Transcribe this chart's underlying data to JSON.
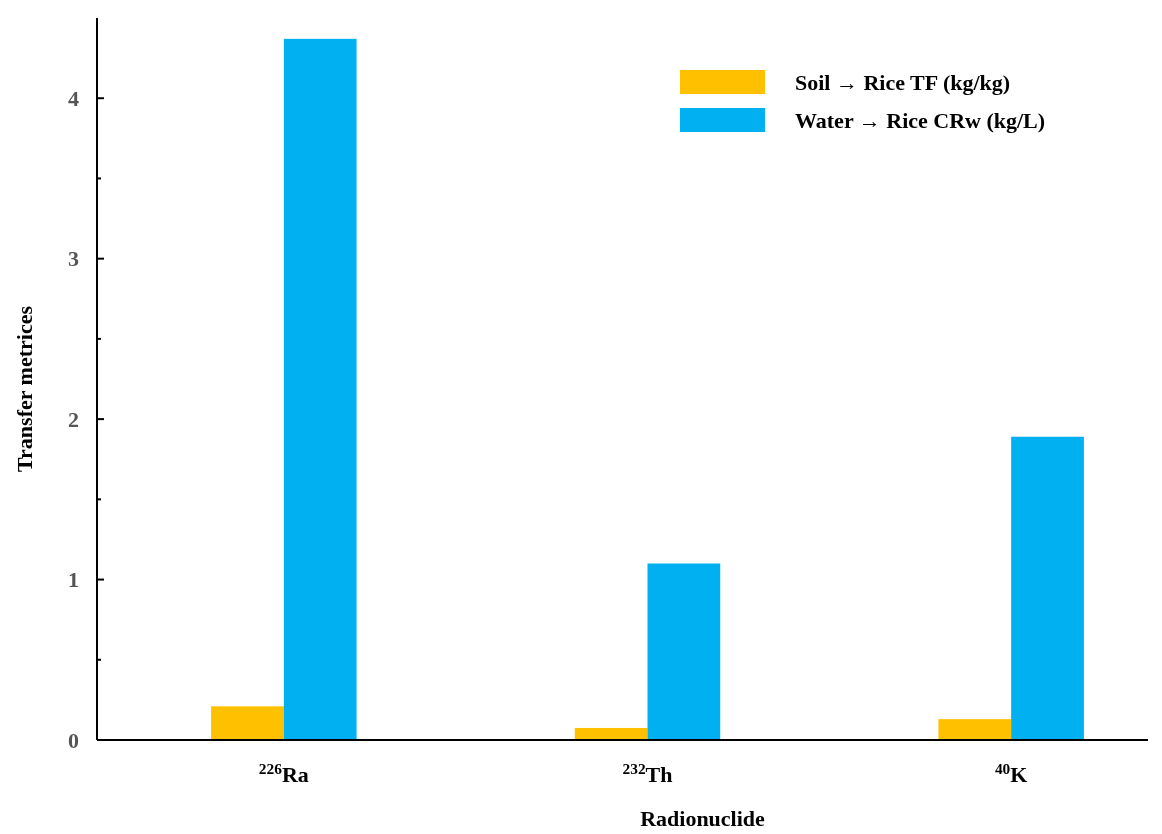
{
  "chart_data": {
    "type": "bar",
    "xlabel": "Radionuclide",
    "ylabel": "Transfer metrices",
    "categories": [
      "$^{226}$Ra",
      "$^{232}$Th",
      "$^{40}$K"
    ],
    "series": [
      {
        "name": "Soil → Rice TF (kg/kg)",
        "color": "#ffc000",
        "values": [
          0.21,
          0.075,
          0.13
        ]
      },
      {
        "name": "Water → Rice CRw (kg/L)",
        "color": "#00b0f0",
        "values": [
          4.37,
          1.1,
          1.89
        ]
      }
    ],
    "ylim": [
      0,
      4.5
    ],
    "yticks": [
      0,
      {
        "value": 0.5,
        "label": null
      },
      1,
      {
        "value": 1.5,
        "label": null
      },
      2,
      {
        "value": 2.5,
        "label": null
      },
      3,
      {
        "value": 3.5,
        "label": null
      },
      4
    ],
    "grid": false,
    "legend": "top right"
  }
}
